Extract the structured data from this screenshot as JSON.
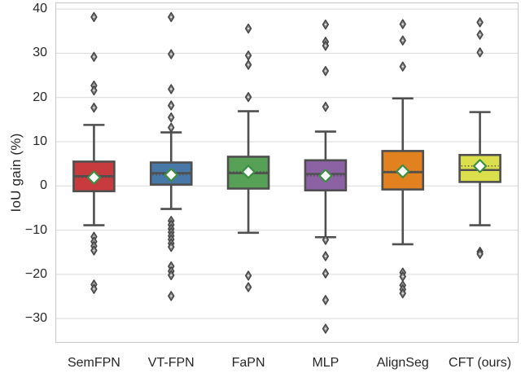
{
  "chart_data": {
    "type": "box",
    "title": "",
    "xlabel": "",
    "ylabel": "IoU gain (%)",
    "ylim": [
      -35.5,
      41.5
    ],
    "ytick_values": [
      40,
      30,
      20,
      10,
      0,
      -10,
      -20,
      -30
    ],
    "ytick_labels": [
      "40",
      "30",
      "20",
      "10",
      "0",
      "−10",
      "−20",
      "−30"
    ],
    "grid": "horizontal",
    "legend": "none",
    "categories": [
      "SemFPN",
      "VT-FPN",
      "FaPN",
      "MLP",
      "AlignSeg",
      "CFT (ours)"
    ],
    "series": [
      {
        "name": "SemFPN",
        "color": "#c73a3d",
        "q1": -1.2,
        "median": 2.2,
        "q3": 5.5,
        "mean": 1.9,
        "whisker_low": -8.9,
        "whisker_high": 13.8,
        "outliers_high": [
          38.2,
          29.2,
          22.7,
          21.6,
          17.7
        ],
        "outliers_low": [
          -11.5,
          -12.6,
          -13.6,
          -14.6,
          -22.3,
          -23.3
        ]
      },
      {
        "name": "VT-FPN",
        "color": "#4878a8",
        "q1": 0.3,
        "median": 2.9,
        "q3": 5.3,
        "mean": 2.5,
        "whisker_low": -5.2,
        "whisker_high": 12.1,
        "outliers_high": [
          38.2,
          29.8,
          21.9,
          18.2,
          15.5,
          13.2
        ],
        "outliers_low": [
          -7.9,
          -8.8,
          -9.7,
          -10.5,
          -11.3,
          -12.1,
          -13.0,
          -13.8,
          -18.2,
          -19.3,
          -20.2,
          -24.9
        ]
      },
      {
        "name": "FaPN",
        "color": "#56a156",
        "q1": -0.6,
        "median": 2.9,
        "q3": 6.6,
        "mean": 3.2,
        "whisker_low": -10.6,
        "whisker_high": 16.9,
        "outliers_high": [
          35.6,
          29.5,
          27.4,
          20.1
        ],
        "outliers_low": [
          -20.3,
          -22.9
        ]
      },
      {
        "name": "MLP",
        "color": "#8d62a4",
        "q1": -1.0,
        "median": 2.7,
        "q3": 5.8,
        "mean": 2.3,
        "whisker_low": -11.6,
        "whisker_high": 12.3,
        "outliers_high": [
          36.5,
          32.6,
          31.7,
          26.0,
          17.9
        ],
        "outliers_low": [
          -12.2,
          -15.9,
          -19.8,
          -25.8,
          -32.3
        ]
      },
      {
        "name": "AlignSeg",
        "color": "#e1811f",
        "q1": -0.8,
        "median": 3.1,
        "q3": 7.9,
        "mean": 3.3,
        "whisker_low": -13.2,
        "whisker_high": 19.8,
        "outliers_high": [
          36.6,
          32.9,
          27.0
        ],
        "outliers_low": [
          -19.6,
          -20.5,
          -22.5,
          -23.4,
          -24.3
        ]
      },
      {
        "name": "CFT (ours)",
        "color": "#dcdf4c",
        "q1": 0.9,
        "median": 3.6,
        "q3": 7.0,
        "mean": 4.5,
        "whisker_low": -8.9,
        "whisker_high": 16.7,
        "outliers_high": [
          37.0,
          34.2,
          30.2
        ],
        "outliers_low": [
          -14.9,
          -15.4
        ]
      }
    ],
    "style": {
      "line_color": "#4f4f4f",
      "grid_color": "#d9d9d9",
      "spine_color": "#cccccc",
      "outlier_fill": "#8c8c8c",
      "outlier_edge": "#454545",
      "mean_marker_fill": "#ffffff",
      "mean_marker_edge": "#3a8f43",
      "tick_label_color": "#262626"
    }
  }
}
